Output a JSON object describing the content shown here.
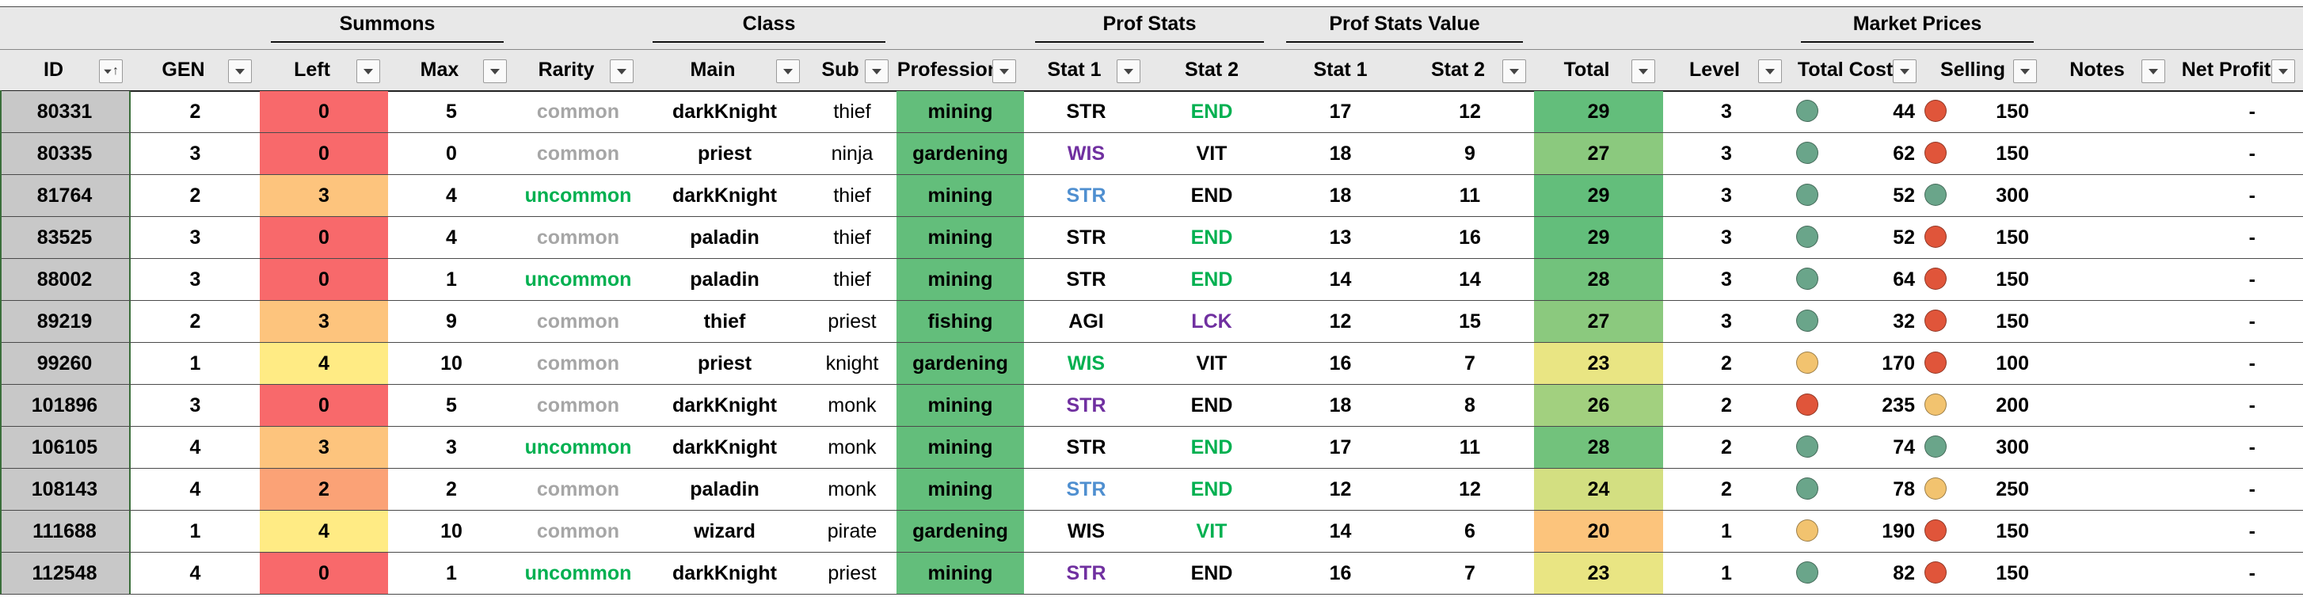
{
  "groups": [
    {
      "key": "summons",
      "label": "Summons"
    },
    {
      "key": "class",
      "label": "Class"
    },
    {
      "key": "prof_stats",
      "label": "Prof Stats"
    },
    {
      "key": "prof_stats_value",
      "label": "Prof Stats Value"
    },
    {
      "key": "market",
      "label": "Market Prices"
    }
  ],
  "columns": [
    {
      "key": "id",
      "label": "ID"
    },
    {
      "key": "gen",
      "label": "GEN"
    },
    {
      "key": "left",
      "label": "Left"
    },
    {
      "key": "max",
      "label": "Max"
    },
    {
      "key": "rarity",
      "label": "Rarity"
    },
    {
      "key": "main",
      "label": "Main"
    },
    {
      "key": "sub",
      "label": "Sub"
    },
    {
      "key": "profession",
      "label": "Profession"
    },
    {
      "key": "stat1",
      "label": "Stat 1"
    },
    {
      "key": "stat2",
      "label": "Stat 2"
    },
    {
      "key": "stat1_value",
      "label": "Stat 1"
    },
    {
      "key": "stat2_value",
      "label": "Stat 2"
    },
    {
      "key": "total",
      "label": "Total"
    },
    {
      "key": "level",
      "label": "Level"
    },
    {
      "key": "total_cost",
      "label": "Total Cost"
    },
    {
      "key": "selling",
      "label": "Selling"
    },
    {
      "key": "notes",
      "label": "Notes"
    },
    {
      "key": "net_profit",
      "label": "Net Profit"
    }
  ],
  "colors": {
    "header_bg": "#e8e8e8",
    "id_bg": "#c8c8c8",
    "profession_bg": "#63be7b",
    "rarity_common": "#a6a6a6",
    "rarity_uncommon": "#00b050",
    "stat_green": "#00b050",
    "stat_purple": "#7030a0",
    "stat_blue": "#4f8fd0",
    "stat_black": "#000000",
    "left_0": "#f8696b",
    "left_2": "#fba276",
    "left_3": "#fdc47d",
    "left_4": "#ffeb84",
    "total_29": "#63be7b",
    "total_28": "#72c27c",
    "total_27": "#8bc97e",
    "total_26": "#a2d07f",
    "total_24": "#d3df81",
    "total_23": "#e9e583",
    "total_20": "#fcc47c",
    "dot_teal": "#6aa58a",
    "dot_red": "#e0553a",
    "dot_yellow": "#f2c36f"
  },
  "rows": [
    {
      "id": "80331",
      "gen": "2",
      "left": "0",
      "max": "5",
      "rarity": "common",
      "main": "darkKnight",
      "sub": "thief",
      "profession": "mining",
      "stat1": "STR",
      "stat1_color": "stat_black",
      "stat2": "END",
      "stat2_color": "stat_green",
      "stat1_value": "17",
      "stat2_value": "12",
      "total": "29",
      "total_color": "total_29",
      "level": "3",
      "cost_icon": "dot_teal",
      "total_cost": "44",
      "sell_icon": "dot_red",
      "selling": "150",
      "notes": "",
      "net_profit": "-"
    },
    {
      "id": "80335",
      "gen": "3",
      "left": "0",
      "max": "0",
      "rarity": "common",
      "main": "priest",
      "sub": "ninja",
      "profession": "gardening",
      "stat1": "WIS",
      "stat1_color": "stat_purple",
      "stat2": "VIT",
      "stat2_color": "stat_black",
      "stat1_value": "18",
      "stat2_value": "9",
      "total": "27",
      "total_color": "total_27",
      "level": "3",
      "cost_icon": "dot_teal",
      "total_cost": "62",
      "sell_icon": "dot_red",
      "selling": "150",
      "notes": "",
      "net_profit": "-"
    },
    {
      "id": "81764",
      "gen": "2",
      "left": "3",
      "max": "4",
      "rarity": "uncommon",
      "main": "darkKnight",
      "sub": "thief",
      "profession": "mining",
      "stat1": "STR",
      "stat1_color": "stat_blue",
      "stat2": "END",
      "stat2_color": "stat_black",
      "stat1_value": "18",
      "stat2_value": "11",
      "total": "29",
      "total_color": "total_29",
      "level": "3",
      "cost_icon": "dot_teal",
      "total_cost": "52",
      "sell_icon": "dot_teal",
      "selling": "300",
      "notes": "",
      "net_profit": "-"
    },
    {
      "id": "83525",
      "gen": "3",
      "left": "0",
      "max": "4",
      "rarity": "common",
      "main": "paladin",
      "sub": "thief",
      "profession": "mining",
      "stat1": "STR",
      "stat1_color": "stat_black",
      "stat2": "END",
      "stat2_color": "stat_green",
      "stat1_value": "13",
      "stat2_value": "16",
      "total": "29",
      "total_color": "total_29",
      "level": "3",
      "cost_icon": "dot_teal",
      "total_cost": "52",
      "sell_icon": "dot_red",
      "selling": "150",
      "notes": "",
      "net_profit": "-"
    },
    {
      "id": "88002",
      "gen": "3",
      "left": "0",
      "max": "1",
      "rarity": "uncommon",
      "main": "paladin",
      "sub": "thief",
      "profession": "mining",
      "stat1": "STR",
      "stat1_color": "stat_black",
      "stat2": "END",
      "stat2_color": "stat_green",
      "stat1_value": "14",
      "stat2_value": "14",
      "total": "28",
      "total_color": "total_28",
      "level": "3",
      "cost_icon": "dot_teal",
      "total_cost": "64",
      "sell_icon": "dot_red",
      "selling": "150",
      "notes": "",
      "net_profit": "-"
    },
    {
      "id": "89219",
      "gen": "2",
      "left": "3",
      "max": "9",
      "rarity": "common",
      "main": "thief",
      "sub": "priest",
      "profession": "fishing",
      "stat1": "AGI",
      "stat1_color": "stat_black",
      "stat2": "LCK",
      "stat2_color": "stat_purple",
      "stat1_value": "12",
      "stat2_value": "15",
      "total": "27",
      "total_color": "total_27",
      "level": "3",
      "cost_icon": "dot_teal",
      "total_cost": "32",
      "sell_icon": "dot_red",
      "selling": "150",
      "notes": "",
      "net_profit": "-"
    },
    {
      "id": "99260",
      "gen": "1",
      "left": "4",
      "max": "10",
      "rarity": "common",
      "main": "priest",
      "sub": "knight",
      "profession": "gardening",
      "stat1": "WIS",
      "stat1_color": "stat_green",
      "stat2": "VIT",
      "stat2_color": "stat_black",
      "stat1_value": "16",
      "stat2_value": "7",
      "total": "23",
      "total_color": "total_23",
      "level": "2",
      "cost_icon": "dot_yellow",
      "total_cost": "170",
      "sell_icon": "dot_red",
      "selling": "100",
      "notes": "",
      "net_profit": "-"
    },
    {
      "id": "101896",
      "gen": "3",
      "left": "0",
      "max": "5",
      "rarity": "common",
      "main": "darkKnight",
      "sub": "monk",
      "profession": "mining",
      "stat1": "STR",
      "stat1_color": "stat_purple",
      "stat2": "END",
      "stat2_color": "stat_black",
      "stat1_value": "18",
      "stat2_value": "8",
      "total": "26",
      "total_color": "total_26",
      "level": "2",
      "cost_icon": "dot_red",
      "total_cost": "235",
      "sell_icon": "dot_yellow",
      "selling": "200",
      "notes": "",
      "net_profit": "-"
    },
    {
      "id": "106105",
      "gen": "4",
      "left": "3",
      "max": "3",
      "rarity": "uncommon",
      "main": "darkKnight",
      "sub": "monk",
      "profession": "mining",
      "stat1": "STR",
      "stat1_color": "stat_black",
      "stat2": "END",
      "stat2_color": "stat_green",
      "stat1_value": "17",
      "stat2_value": "11",
      "total": "28",
      "total_color": "total_28",
      "level": "2",
      "cost_icon": "dot_teal",
      "total_cost": "74",
      "sell_icon": "dot_teal",
      "selling": "300",
      "notes": "",
      "net_profit": "-"
    },
    {
      "id": "108143",
      "gen": "4",
      "left": "2",
      "max": "2",
      "rarity": "common",
      "main": "paladin",
      "sub": "monk",
      "profession": "mining",
      "stat1": "STR",
      "stat1_color": "stat_blue",
      "stat2": "END",
      "stat2_color": "stat_green",
      "stat1_value": "12",
      "stat2_value": "12",
      "total": "24",
      "total_color": "total_24",
      "level": "2",
      "cost_icon": "dot_teal",
      "total_cost": "78",
      "sell_icon": "dot_yellow",
      "selling": "250",
      "notes": "",
      "net_profit": "-"
    },
    {
      "id": "111688",
      "gen": "1",
      "left": "4",
      "max": "10",
      "rarity": "common",
      "main": "wizard",
      "sub": "pirate",
      "profession": "gardening",
      "stat1": "WIS",
      "stat1_color": "stat_black",
      "stat2": "VIT",
      "stat2_color": "stat_green",
      "stat1_value": "14",
      "stat2_value": "6",
      "total": "20",
      "total_color": "total_20",
      "level": "1",
      "cost_icon": "dot_yellow",
      "total_cost": "190",
      "sell_icon": "dot_red",
      "selling": "150",
      "notes": "",
      "net_profit": "-"
    },
    {
      "id": "112548",
      "gen": "4",
      "left": "0",
      "max": "1",
      "rarity": "uncommon",
      "main": "darkKnight",
      "sub": "priest",
      "profession": "mining",
      "stat1": "STR",
      "stat1_color": "stat_purple",
      "stat2": "END",
      "stat2_color": "stat_black",
      "stat1_value": "16",
      "stat2_value": "7",
      "total": "23",
      "total_color": "total_23",
      "level": "1",
      "cost_icon": "dot_teal",
      "total_cost": "82",
      "sell_icon": "dot_red",
      "selling": "150",
      "notes": "",
      "net_profit": "-"
    }
  ]
}
